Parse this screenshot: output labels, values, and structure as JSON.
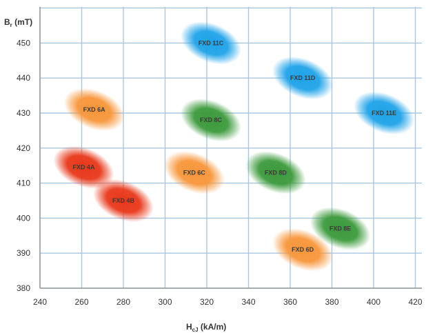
{
  "chart_data": {
    "type": "scatter",
    "xlabel": "H",
    "xlabel_sub": "cJ",
    "xlabel_unit": " (kA/m)",
    "ylabel": "B",
    "ylabel_sub": "r",
    "ylabel_unit": " (mT)",
    "xlim": [
      240,
      420
    ],
    "ylim": [
      380,
      460
    ],
    "x_ticks": [
      240,
      260,
      280,
      300,
      320,
      340,
      360,
      380,
      400,
      420
    ],
    "y_ticks": [
      380,
      390,
      400,
      410,
      420,
      430,
      440,
      450
    ],
    "grid": true,
    "points": [
      {
        "label": "FXD 4A",
        "x": 261,
        "y": 414.5,
        "color": "#e8381a"
      },
      {
        "label": "FXD 4B",
        "x": 280,
        "y": 405,
        "color": "#e8381a"
      },
      {
        "label": "FXD 6A",
        "x": 266,
        "y": 431,
        "color": "#f7963a"
      },
      {
        "label": "FXD 6C",
        "x": 314,
        "y": 413,
        "color": "#f7963a"
      },
      {
        "label": "FXD 6D",
        "x": 366,
        "y": 391,
        "color": "#f7963a"
      },
      {
        "label": "FXD 8C",
        "x": 322,
        "y": 428,
        "color": "#3c9a3c"
      },
      {
        "label": "FXD 8D",
        "x": 353,
        "y": 413,
        "color": "#3c9a3c"
      },
      {
        "label": "FXD 8E",
        "x": 384,
        "y": 397,
        "color": "#3c9a3c"
      },
      {
        "label": "FXD 11C",
        "x": 322,
        "y": 450,
        "color": "#1fa3e8"
      },
      {
        "label": "FXD 11D",
        "x": 366,
        "y": 440,
        "color": "#1fa3e8"
      },
      {
        "label": "FXD 11E",
        "x": 405,
        "y": 430,
        "color": "#1fa3e8"
      }
    ]
  },
  "colors": {
    "grid": "#a9c6e0",
    "axis": "#999999",
    "text": "#333333"
  }
}
